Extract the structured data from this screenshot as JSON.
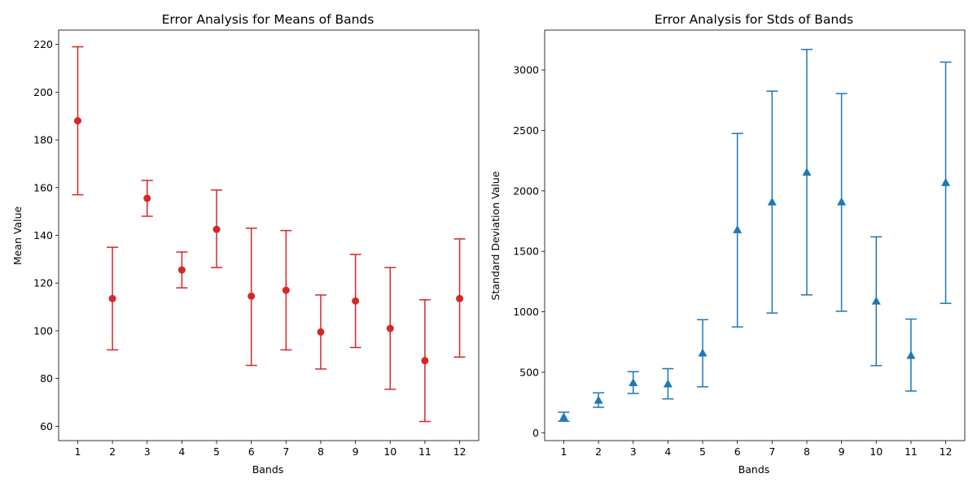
{
  "chart_data": [
    {
      "type": "scatter",
      "title": "Error Analysis for Means of Bands",
      "xlabel": "Bands",
      "ylabel": "Mean Value",
      "ylim": [
        54,
        226
      ],
      "yticks": [
        60,
        80,
        100,
        120,
        140,
        160,
        180,
        200,
        220
      ],
      "categories": [
        "1",
        "2",
        "3",
        "4",
        "5",
        "6",
        "7",
        "8",
        "9",
        "10",
        "11",
        "12"
      ],
      "marker": "circle",
      "color": "#d62728",
      "grid": false,
      "series": [
        {
          "values": [
            188,
            113.5,
            155.5,
            125.5,
            142.5,
            114.5,
            117,
            99.5,
            112.5,
            101,
            87.5,
            113.5
          ],
          "lower": [
            157,
            92,
            148,
            118,
            126.5,
            85.5,
            92,
            84,
            93,
            75.5,
            62,
            89
          ],
          "upper": [
            219,
            135,
            163,
            133,
            159,
            143,
            142,
            115,
            132,
            126.5,
            113,
            138.5
          ]
        }
      ]
    },
    {
      "type": "scatter",
      "title": "Error Analysis for Stds of Bands",
      "xlabel": "Bands",
      "ylabel": "Standard Deviation Value",
      "ylim": [
        -65,
        3330
      ],
      "yticks": [
        0,
        500,
        1000,
        1500,
        2000,
        2500,
        3000
      ],
      "categories": [
        "1",
        "2",
        "3",
        "4",
        "5",
        "6",
        "7",
        "8",
        "9",
        "10",
        "11",
        "12"
      ],
      "marker": "triangle",
      "color": "#1f77b4",
      "grid": false,
      "series": [
        {
          "values": [
            130,
            270,
            415,
            405,
            660,
            1680,
            1910,
            2155,
            1910,
            1090,
            640,
            2070
          ],
          "lower": [
            95,
            210,
            325,
            280,
            380,
            875,
            990,
            1140,
            1005,
            555,
            345,
            1070
          ],
          "upper": [
            170,
            330,
            505,
            530,
            935,
            2475,
            2825,
            3170,
            2805,
            1620,
            940,
            3065
          ]
        }
      ]
    }
  ]
}
